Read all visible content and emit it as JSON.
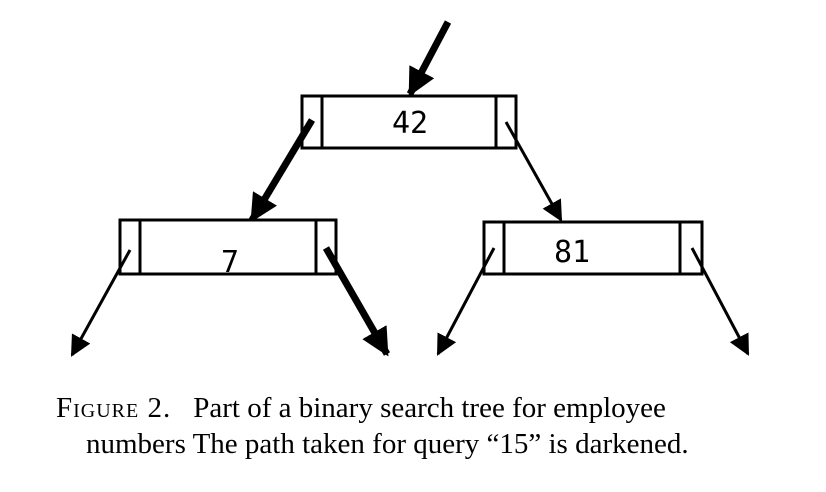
{
  "tree": {
    "root": {
      "label": "42"
    },
    "left": {
      "label": "7"
    },
    "right": {
      "label": "81"
    }
  },
  "caption": {
    "figure_label": "Figure 2.",
    "line1": "Part of a binary search tree for employee",
    "line2": "numbers The path taken for query “15” is darkened."
  }
}
